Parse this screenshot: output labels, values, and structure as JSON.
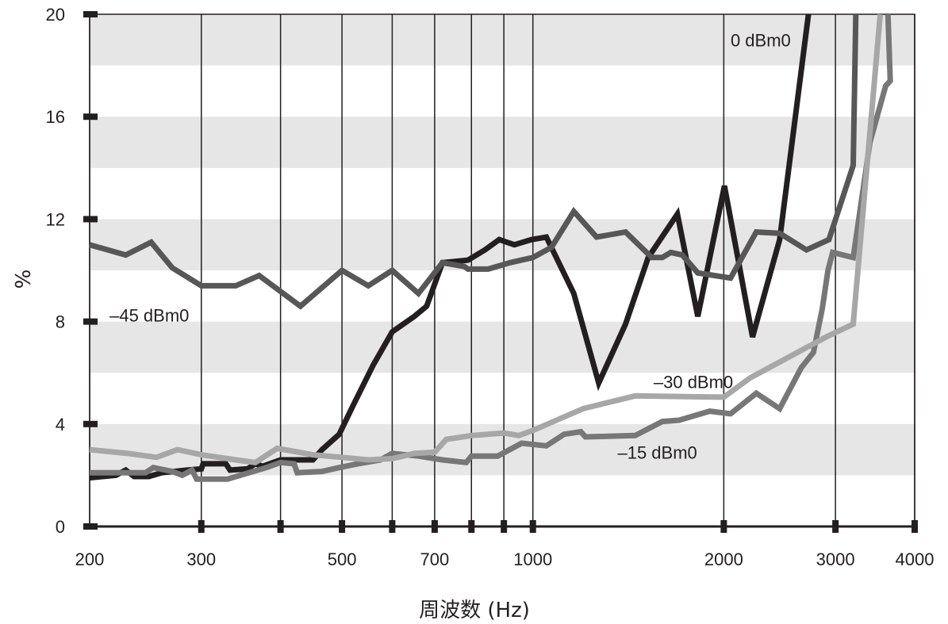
{
  "chart_data": {
    "type": "line",
    "title": "",
    "xlabel": "周波数 (Hz)",
    "ylabel": "%",
    "x_scale": "log",
    "xlim": [
      200,
      4000
    ],
    "ylim": [
      0,
      20
    ],
    "x_ticks": [
      {
        "value": 200,
        "label": "200"
      },
      {
        "value": 300,
        "label": "300"
      },
      {
        "value": 400,
        "label": ""
      },
      {
        "value": 500,
        "label": "500"
      },
      {
        "value": 600,
        "label": ""
      },
      {
        "value": 700,
        "label": "700"
      },
      {
        "value": 800,
        "label": ""
      },
      {
        "value": 900,
        "label": ""
      },
      {
        "value": 1000,
        "label": "1000"
      },
      {
        "value": 2000,
        "label": "2000"
      },
      {
        "value": 3000,
        "label": "3000"
      },
      {
        "value": 4000,
        "label": "4000"
      }
    ],
    "y_ticks": [
      {
        "value": 0,
        "label": "0"
      },
      {
        "value": 4,
        "label": "4"
      },
      {
        "value": 8,
        "label": "8"
      },
      {
        "value": 12,
        "label": "12"
      },
      {
        "value": 16,
        "label": "16"
      },
      {
        "value": 20,
        "label": "20"
      }
    ],
    "bands": [
      [
        2,
        4
      ],
      [
        6,
        8
      ],
      [
        10,
        12
      ],
      [
        14,
        16
      ],
      [
        18,
        20
      ]
    ],
    "band_color": "#e6e6e6",
    "series": [
      {
        "name": "0 dBm0",
        "color": "#231f20",
        "label": {
          "text": "0 dBm0",
          "x": 2050,
          "y": 19.0
        },
        "points": [
          [
            200,
            1.9
          ],
          [
            220,
            2.0
          ],
          [
            228,
            2.2
          ],
          [
            235,
            1.95
          ],
          [
            248,
            1.95
          ],
          [
            260,
            2.1
          ],
          [
            285,
            2.2
          ],
          [
            300,
            2.25
          ],
          [
            302,
            2.45
          ],
          [
            328,
            2.45
          ],
          [
            333,
            2.2
          ],
          [
            355,
            2.25
          ],
          [
            365,
            2.45
          ],
          [
            375,
            2.35
          ],
          [
            400,
            2.6
          ],
          [
            450,
            2.6
          ],
          [
            465,
            3.0
          ],
          [
            495,
            3.6
          ],
          [
            520,
            4.7
          ],
          [
            560,
            6.3
          ],
          [
            600,
            7.6
          ],
          [
            650,
            8.2
          ],
          [
            680,
            8.6
          ],
          [
            720,
            10.3
          ],
          [
            790,
            10.4
          ],
          [
            840,
            10.8
          ],
          [
            885,
            11.2
          ],
          [
            935,
            11.0
          ],
          [
            995,
            11.2
          ],
          [
            1050,
            11.3
          ],
          [
            1160,
            9.1
          ],
          [
            1270,
            5.6
          ],
          [
            1400,
            7.9
          ],
          [
            1520,
            10.5
          ],
          [
            1690,
            12.2
          ],
          [
            1820,
            8.2
          ],
          [
            2005,
            13.3
          ],
          [
            2220,
            7.4
          ],
          [
            2450,
            11.2
          ],
          [
            2720,
            20.0
          ]
        ]
      },
      {
        "name": "-15 dBm0",
        "color": "#777777",
        "label": {
          "text": "–15 dBm0",
          "x": 1360,
          "y": 2.9
        },
        "points": [
          [
            200,
            2.1
          ],
          [
            245,
            2.1
          ],
          [
            252,
            2.3
          ],
          [
            270,
            2.15
          ],
          [
            280,
            2.0
          ],
          [
            290,
            2.2
          ],
          [
            295,
            1.85
          ],
          [
            330,
            1.85
          ],
          [
            380,
            2.3
          ],
          [
            400,
            2.5
          ],
          [
            420,
            2.45
          ],
          [
            425,
            2.1
          ],
          [
            465,
            2.15
          ],
          [
            495,
            2.3
          ],
          [
            530,
            2.45
          ],
          [
            575,
            2.6
          ],
          [
            600,
            2.85
          ],
          [
            660,
            2.75
          ],
          [
            720,
            2.6
          ],
          [
            785,
            2.5
          ],
          [
            800,
            2.75
          ],
          [
            880,
            2.75
          ],
          [
            960,
            3.25
          ],
          [
            1050,
            3.15
          ],
          [
            1120,
            3.6
          ],
          [
            1190,
            3.7
          ],
          [
            1210,
            3.5
          ],
          [
            1450,
            3.55
          ],
          [
            1600,
            4.1
          ],
          [
            1700,
            4.15
          ],
          [
            1900,
            4.5
          ],
          [
            2050,
            4.4
          ],
          [
            2250,
            5.2
          ],
          [
            2450,
            4.6
          ],
          [
            2650,
            6.2
          ],
          [
            2770,
            6.8
          ],
          [
            2860,
            8.5
          ],
          [
            2920,
            10.0
          ],
          [
            2970,
            10.7
          ],
          [
            3200,
            10.5
          ],
          [
            3400,
            15.0
          ],
          [
            3600,
            17.2
          ],
          [
            3660,
            17.4
          ],
          [
            3630,
            20.0
          ]
        ]
      },
      {
        "name": "-30 dBm0",
        "color": "#a7a7a7",
        "label": {
          "text": "–30 dBm0",
          "x": 1550,
          "y": 5.65
        },
        "points": [
          [
            200,
            3.0
          ],
          [
            230,
            2.85
          ],
          [
            255,
            2.7
          ],
          [
            275,
            3.0
          ],
          [
            300,
            2.8
          ],
          [
            340,
            2.6
          ],
          [
            365,
            2.5
          ],
          [
            395,
            3.05
          ],
          [
            450,
            2.8
          ],
          [
            500,
            2.7
          ],
          [
            550,
            2.6
          ],
          [
            600,
            2.65
          ],
          [
            650,
            2.85
          ],
          [
            700,
            2.9
          ],
          [
            730,
            3.4
          ],
          [
            800,
            3.55
          ],
          [
            900,
            3.65
          ],
          [
            950,
            3.55
          ],
          [
            1000,
            3.75
          ],
          [
            1200,
            4.6
          ],
          [
            1450,
            5.1
          ],
          [
            2000,
            5.05
          ],
          [
            2200,
            5.8
          ],
          [
            2900,
            7.4
          ],
          [
            3200,
            7.9
          ],
          [
            3530,
            20.0
          ]
        ]
      },
      {
        "name": "-45 dBm0",
        "color": "#575757",
        "label": {
          "text": "–45 dBm0",
          "x": 215,
          "y": 8.25
        },
        "points": [
          [
            200,
            11.0
          ],
          [
            228,
            10.6
          ],
          [
            250,
            11.1
          ],
          [
            270,
            10.1
          ],
          [
            300,
            9.4
          ],
          [
            340,
            9.4
          ],
          [
            370,
            9.8
          ],
          [
            430,
            8.6
          ],
          [
            500,
            10.0
          ],
          [
            550,
            9.4
          ],
          [
            600,
            10.0
          ],
          [
            660,
            9.1
          ],
          [
            720,
            10.3
          ],
          [
            780,
            10.15
          ],
          [
            790,
            10.05
          ],
          [
            850,
            10.05
          ],
          [
            920,
            10.3
          ],
          [
            1000,
            10.5
          ],
          [
            1070,
            10.9
          ],
          [
            1160,
            12.3
          ],
          [
            1260,
            11.3
          ],
          [
            1400,
            11.5
          ],
          [
            1540,
            10.5
          ],
          [
            1600,
            10.5
          ],
          [
            1650,
            10.7
          ],
          [
            1720,
            10.6
          ],
          [
            1820,
            9.9
          ],
          [
            2050,
            9.7
          ],
          [
            2250,
            11.5
          ],
          [
            2450,
            11.45
          ],
          [
            2700,
            10.8
          ],
          [
            2930,
            11.2
          ],
          [
            3200,
            14.1
          ],
          [
            3230,
            20.0
          ]
        ]
      }
    ]
  }
}
